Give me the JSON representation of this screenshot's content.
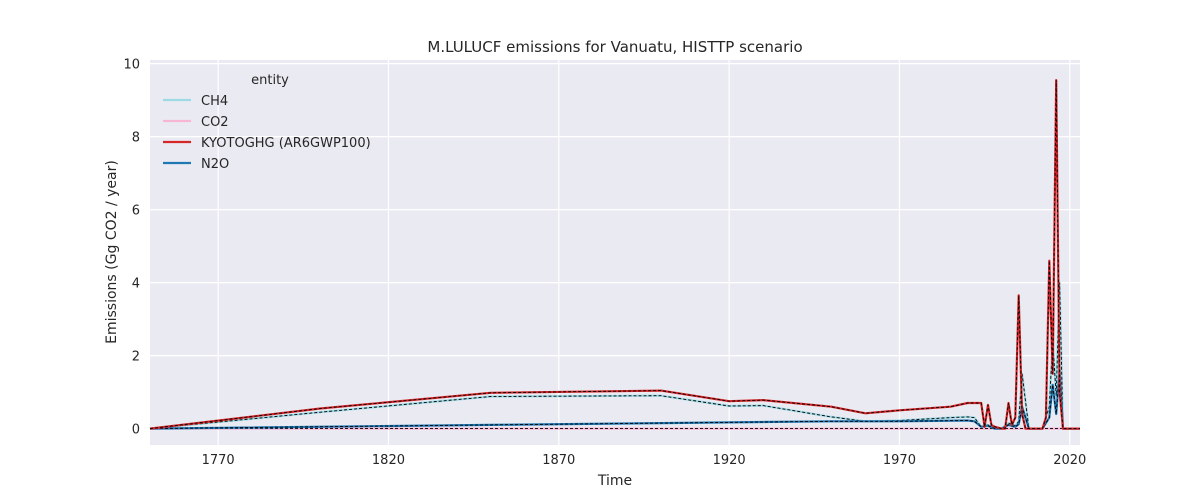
{
  "chart_data": {
    "type": "line",
    "title": "M.LULUCF emissions for Vanuatu, HISTTP scenario",
    "xlabel": "Time",
    "ylabel": "Emissions (Gg CO2 / year)",
    "xlim": [
      1750,
      2023
    ],
    "ylim": [
      -0.45,
      10.1
    ],
    "xticks": [
      1770,
      1820,
      1870,
      1920,
      1970,
      2020
    ],
    "yticks": [
      0,
      2,
      4,
      6,
      8,
      10
    ],
    "grid": true,
    "legend": {
      "title": "entity",
      "placement": "top-left"
    },
    "series": [
      {
        "name": "CH4",
        "color": "#9edae5",
        "x": [
          1750,
          1800,
          1850,
          1900,
          1920,
          1930,
          1950,
          1960,
          1970,
          1985,
          1990,
          1992,
          1994,
          1996,
          1998,
          2000,
          2002,
          2004,
          2005,
          2006,
          2008,
          2012,
          2014,
          2015,
          2016,
          2017,
          2018,
          2023
        ],
        "y": [
          0,
          0.45,
          0.88,
          0.9,
          0.62,
          0.63,
          0.32,
          0.2,
          0.22,
          0.3,
          0.32,
          0.3,
          0.05,
          0.1,
          0,
          0,
          0.15,
          0.08,
          0.2,
          1.5,
          0,
          0,
          0.6,
          2.4,
          0.9,
          4.0,
          0,
          0
        ]
      },
      {
        "name": "CO2",
        "color": "#f7b6d2",
        "x": [
          1750,
          2023
        ],
        "y": [
          0,
          0
        ]
      },
      {
        "name": "KYOTOGHG (AR6GWP100)",
        "color": "#d62728",
        "x": [
          1750,
          1800,
          1850,
          1900,
          1920,
          1930,
          1950,
          1960,
          1970,
          1985,
          1990,
          1994,
          1995,
          1996,
          1997,
          1998,
          2000,
          2001,
          2002,
          2003,
          2004,
          2005,
          2006,
          2007,
          2008,
          2012,
          2013,
          2014,
          2015,
          2016,
          2017,
          2018,
          2019,
          2023
        ],
        "y": [
          0,
          0.55,
          0.98,
          1.04,
          0.75,
          0.78,
          0.6,
          0.42,
          0.5,
          0.6,
          0.7,
          0.7,
          0.05,
          0.65,
          0.1,
          0.05,
          0,
          0,
          0.7,
          0.1,
          0.3,
          3.65,
          0.4,
          0,
          0,
          0,
          0.3,
          4.6,
          1.5,
          9.55,
          1.0,
          0,
          0,
          0
        ]
      },
      {
        "name": "N2O",
        "color": "#1f77b4",
        "x": [
          1750,
          1850,
          1900,
          1950,
          1970,
          1990,
          1992,
          1994,
          1996,
          1998,
          2000,
          2002,
          2004,
          2005,
          2006,
          2008,
          2012,
          2014,
          2015,
          2016,
          2017,
          2018,
          2023
        ],
        "y": [
          0,
          0.1,
          0.15,
          0.2,
          0.2,
          0.22,
          0.2,
          0.05,
          0.08,
          0,
          0,
          0.1,
          0.05,
          0.12,
          0.6,
          0,
          0,
          0.3,
          1.2,
          0.4,
          1.6,
          0,
          0
        ]
      }
    ]
  }
}
